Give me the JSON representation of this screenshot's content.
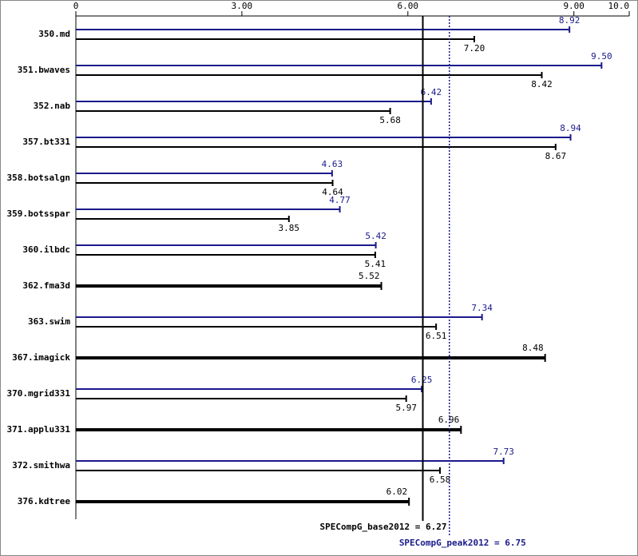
{
  "chart_data": {
    "type": "spec-bar",
    "categories": [
      "350.md",
      "351.bwaves",
      "352.nab",
      "357.bt331",
      "358.botsalgn",
      "359.botsspar",
      "360.ilbdc",
      "362.fma3d",
      "363.swim",
      "367.imagick",
      "370.mgrid331",
      "371.applu331",
      "372.smithwa",
      "376.kdtree"
    ],
    "series": [
      {
        "color": "#1a1a8c",
        "values": [
          8.92,
          9.5,
          6.42,
          8.94,
          4.63,
          4.77,
          5.42,
          null,
          7.34,
          null,
          6.25,
          null,
          7.73,
          null
        ],
        "value_labels": [
          "8.92",
          "9.50",
          "6.42",
          "8.94",
          "4.63",
          "4.77",
          "5.42",
          null,
          "7.34",
          null,
          "6.25",
          null,
          "7.73",
          null
        ]
      },
      {
        "color": "#000000",
        "values": [
          7.2,
          8.42,
          5.68,
          8.67,
          4.64,
          3.85,
          5.41,
          5.52,
          6.51,
          8.48,
          5.97,
          6.96,
          6.58,
          6.02
        ],
        "value_labels": [
          "7.20",
          "8.42",
          "5.68",
          "8.67",
          "4.64",
          "3.85",
          "5.41",
          "5.52",
          "6.51",
          "8.48",
          "5.97",
          "6.96",
          "6.58",
          "6.02"
        ]
      }
    ],
    "xlim": [
      0,
      10
    ],
    "xticks": [
      0,
      {
        "value": 3,
        "label": "3.00"
      },
      {
        "value": 6,
        "label": "6.00"
      },
      {
        "value": 9,
        "label": "9.00"
      },
      {
        "value": 10,
        "label": "10.0"
      }
    ],
    "reference_lines": [
      {
        "value": 6.27,
        "label": "SPECompG_base2012 = 6.27",
        "color": "#000000",
        "style": "solid"
      },
      {
        "value": 6.75,
        "label": "SPECompG_peak2012 = 6.75",
        "color": "#1a1a8c",
        "style": "dotted"
      }
    ]
  }
}
